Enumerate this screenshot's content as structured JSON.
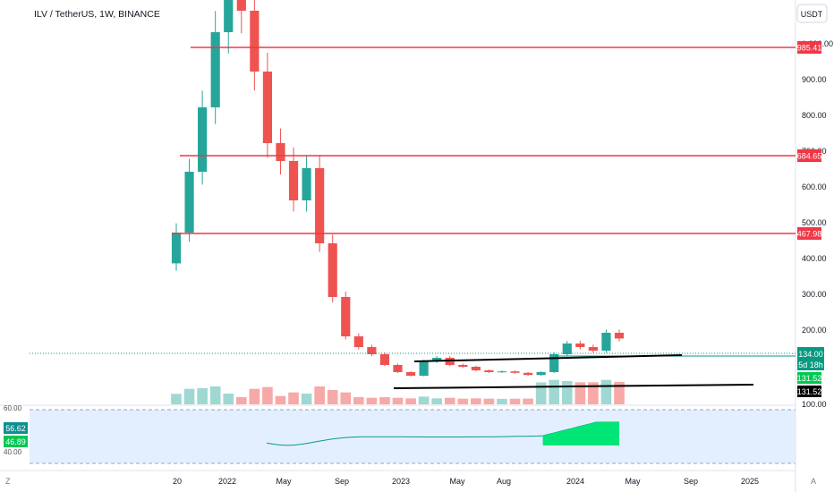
{
  "header": {
    "symbol_title": "ILV / TetherUS, 1W, BINANCE",
    "currency_button": "USDT"
  },
  "colors": {
    "up": "#26a69a",
    "down": "#ef5350",
    "volume_up": "#9fd8d2",
    "volume_down": "#f7a9a7",
    "horizontal_line": "#f23645",
    "trendline": "#000000",
    "price_line": "#089981",
    "rsi_band_fill": "#dbeafe",
    "rsi_area": "#00e676"
  },
  "price_axis": {
    "ticks": [
      "1,000.00",
      "900.00",
      "800.00",
      "700.00",
      "600.00",
      "500.00",
      "400.00",
      "300.00",
      "200.00",
      "100.00"
    ],
    "badges": {
      "level_1": "985.41",
      "level_2": "684.65",
      "level_3": "467.98",
      "current_price": "134.00",
      "countdown": "5d 18h",
      "value_a": "131.52",
      "value_b": "131.52"
    }
  },
  "rsi_axis": {
    "badge_a": "56.62",
    "badge_b": "46.89",
    "tick_60": "60.00",
    "tick_40": "40.00"
  },
  "time_axis": {
    "labels": [
      "20",
      "2022",
      "May",
      "Sep",
      "2023",
      "May",
      "Aug",
      "2024",
      "May",
      "Sep",
      "2025"
    ]
  },
  "bottom_icons": {
    "left": "Z",
    "right": "A"
  },
  "chart_data": {
    "type": "candlestick",
    "symbol": "ILV / TetherUS",
    "interval": "1W",
    "exchange": "BINANCE",
    "y_scale": "linear",
    "ylim": [
      0,
      1050
    ],
    "horizontal_levels": [
      985.41,
      684.65,
      467.98
    ],
    "current_price": 134.0,
    "close_series": [
      {
        "t": "2021-06",
        "close": 430
      },
      {
        "t": "2021-07",
        "close": 600
      },
      {
        "t": "2021-08",
        "close": 780
      },
      {
        "t": "2021-09",
        "close": 990
      },
      {
        "t": "2021-10",
        "close": 1080
      },
      {
        "t": "2021-11",
        "close": 1050
      },
      {
        "t": "2021-12",
        "close": 880
      },
      {
        "t": "2022-01",
        "close": 680
      },
      {
        "t": "2022-02",
        "close": 630
      },
      {
        "t": "2022-03",
        "close": 520
      },
      {
        "t": "2022-04",
        "close": 610
      },
      {
        "t": "2022-05",
        "close": 400
      },
      {
        "t": "2022-06",
        "close": 250
      },
      {
        "t": "2022-07",
        "close": 140
      },
      {
        "t": "2022-08",
        "close": 110
      },
      {
        "t": "2022-09",
        "close": 90
      },
      {
        "t": "2022-10",
        "close": 60
      },
      {
        "t": "2022-11",
        "close": 40
      },
      {
        "t": "2022-12",
        "close": 30
      },
      {
        "t": "2023-01",
        "close": 70
      },
      {
        "t": "2023-02",
        "close": 80
      },
      {
        "t": "2023-03",
        "close": 60
      },
      {
        "t": "2023-04",
        "close": 55
      },
      {
        "t": "2023-05",
        "close": 45
      },
      {
        "t": "2023-06",
        "close": 40
      },
      {
        "t": "2023-07",
        "close": 42
      },
      {
        "t": "2023-08",
        "close": 38
      },
      {
        "t": "2023-09",
        "close": 32
      },
      {
        "t": "2023-10",
        "close": 40
      },
      {
        "t": "2023-11",
        "close": 90
      },
      {
        "t": "2023-12",
        "close": 120
      },
      {
        "t": "2024-01",
        "close": 110
      },
      {
        "t": "2024-02",
        "close": 100
      },
      {
        "t": "2024-03",
        "close": 150
      },
      {
        "t": "2024-04",
        "close": 134
      }
    ],
    "trendlines": [
      {
        "from": [
          "2023-01",
          118
        ],
        "to": [
          "2024-07",
          136
        ]
      },
      {
        "from": [
          "2022-12",
          32
        ],
        "to": [
          "2024-10",
          42
        ]
      }
    ],
    "rsi": {
      "values": [
        56.62,
        46.89
      ],
      "levels": [
        60,
        40
      ]
    }
  }
}
